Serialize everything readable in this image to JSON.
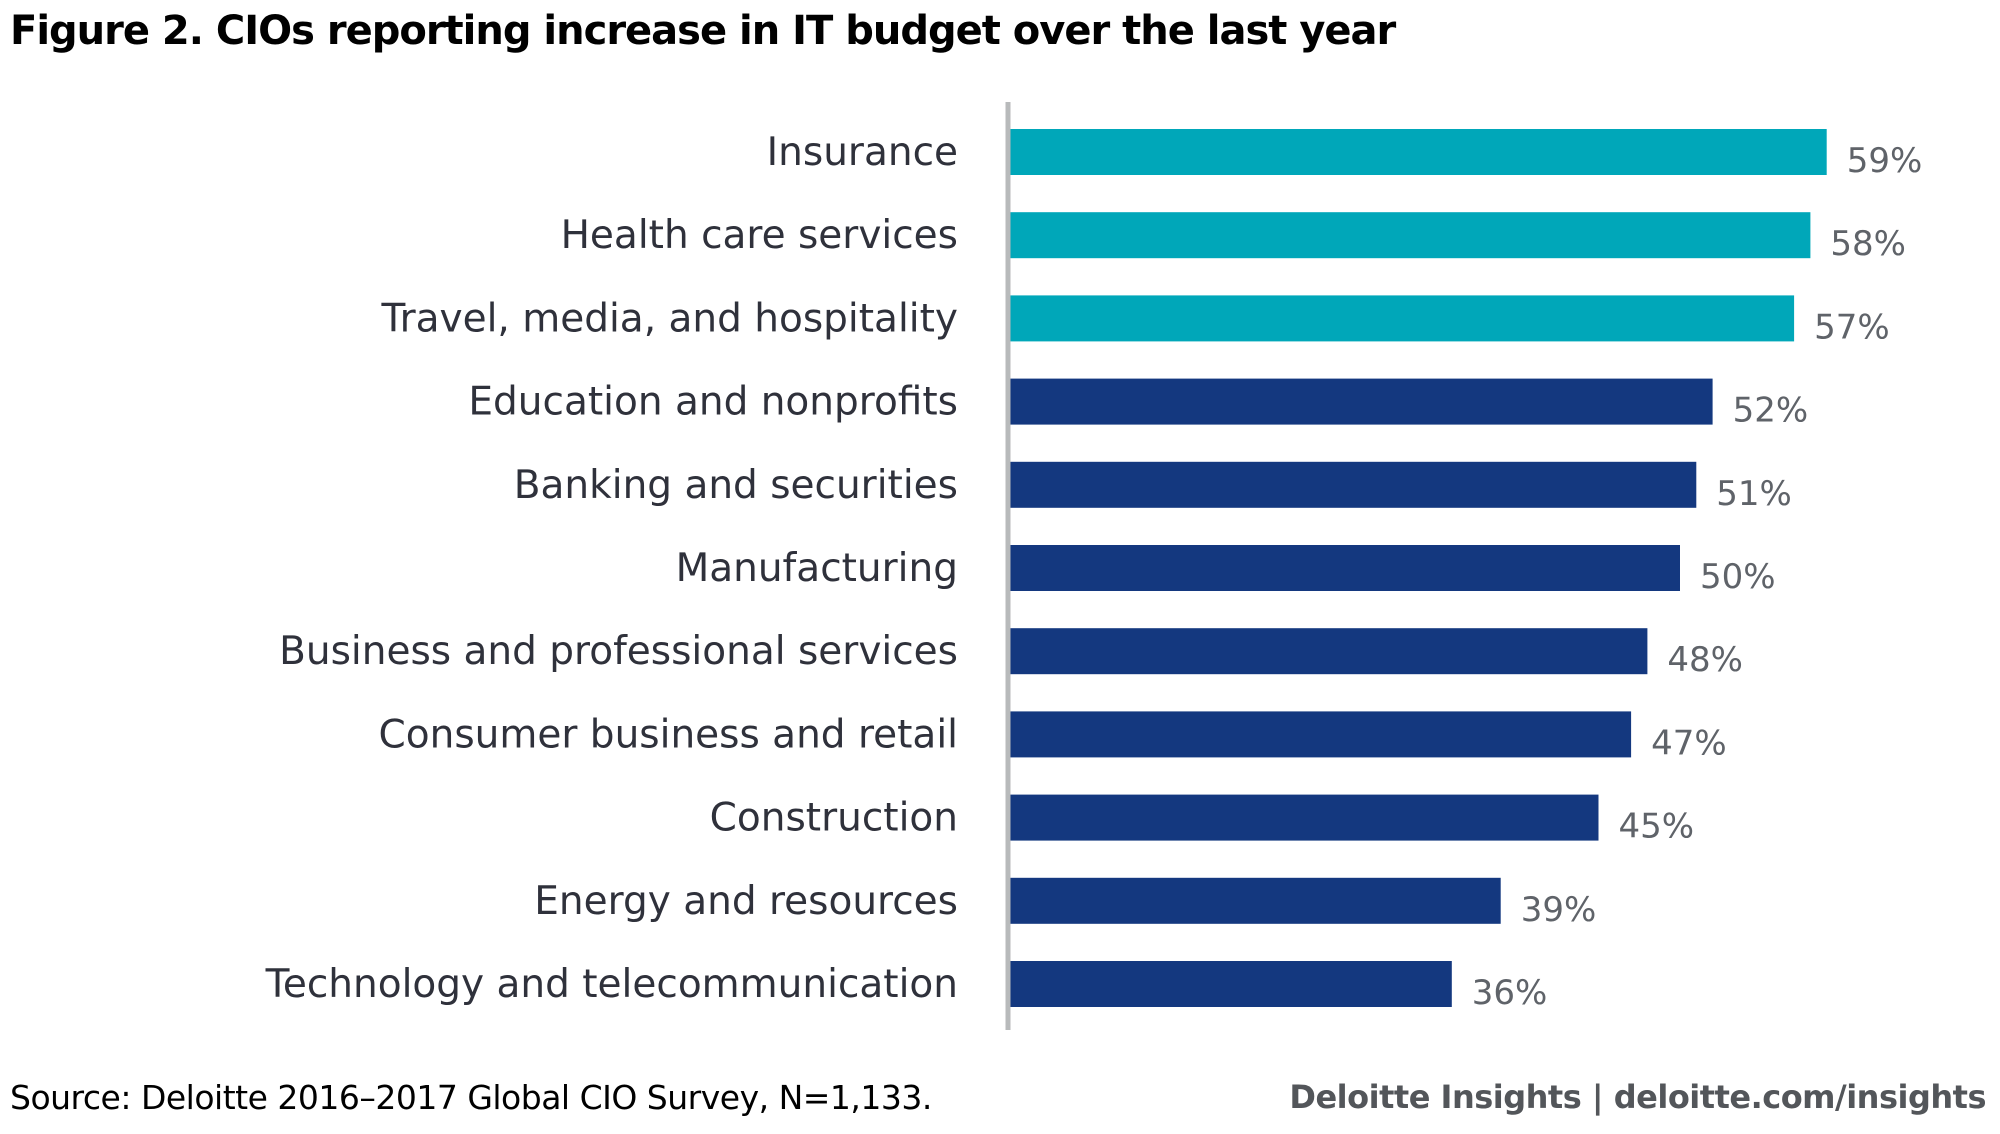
{
  "chart_data": {
    "type": "bar",
    "orientation": "horizontal",
    "title": "Figure 2.  CIOs reporting increase in IT budget over the last year",
    "xlabel": "",
    "ylabel": "",
    "categories": [
      "Insurance",
      "Health care services",
      "Travel, media, and hospitality",
      "Education and nonprofits",
      "Banking and securities",
      "Manufacturing",
      "Business and professional services",
      "Consumer business and retail",
      "Construction",
      "Energy and resources",
      "Technology and telecommunication"
    ],
    "values": [
      59,
      58,
      57,
      52,
      51,
      50,
      48,
      47,
      45,
      39,
      36
    ],
    "value_labels": [
      "59%",
      "58%",
      "57%",
      "52%",
      "51%",
      "50%",
      "48%",
      "47%",
      "45%",
      "39%",
      "36%"
    ],
    "highlighted": [
      true,
      true,
      true,
      false,
      false,
      false,
      false,
      false,
      false,
      false,
      false
    ],
    "colors": {
      "highlight": "#00A7B9",
      "default": "#14387F",
      "axis": "#B8BABB"
    },
    "grid": false,
    "legend": "none"
  },
  "footer": {
    "source": "Source: Deloitte 2016–2017 Global CIO Survey, N=1,133.",
    "brand": "Deloitte Insights | deloitte.com/insights"
  }
}
